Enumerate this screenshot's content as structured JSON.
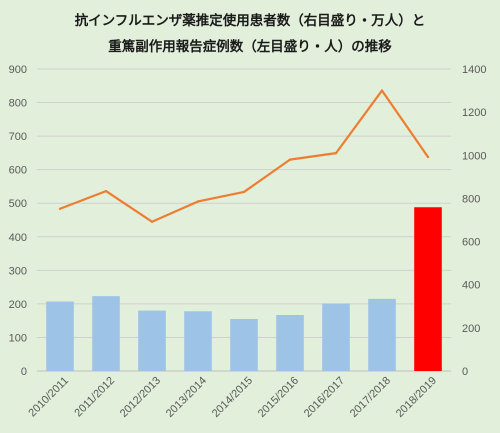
{
  "chart_data": {
    "type": "bar",
    "title_line1": "抗インフルエンザ薬推定使用患者数（右目盛り・万人）と",
    "title_line2": "重篤副作用報告症例数（左目盛り・人）の推移",
    "categories": [
      "2010/2011",
      "2011/2012",
      "2012/2013",
      "2013/2014",
      "2014/2015",
      "2015/2016",
      "2016/2017",
      "2017/2018",
      "2018/2019"
    ],
    "bar_series": {
      "axis": "left",
      "values": [
        207,
        223,
        180,
        178,
        155,
        167,
        201,
        215,
        488
      ],
      "colors": [
        "#9dc3e6",
        "#9dc3e6",
        "#9dc3e6",
        "#9dc3e6",
        "#9dc3e6",
        "#9dc3e6",
        "#9dc3e6",
        "#9dc3e6",
        "#ff0000"
      ]
    },
    "line_series": {
      "axis": "right",
      "color": "#ed7d31",
      "values": [
        752,
        834,
        692,
        786,
        830,
        980,
        1010,
        1300,
        992
      ]
    },
    "ylim_left": [
      0,
      900
    ],
    "yticks_left": [
      "0",
      "100",
      "200",
      "300",
      "400",
      "500",
      "600",
      "700",
      "800",
      "900"
    ],
    "ylim_right": [
      0,
      1400
    ],
    "yticks_right": [
      "0",
      "200",
      "400",
      "600",
      "800",
      "1000",
      "1200",
      "1400"
    ],
    "grid": true
  }
}
